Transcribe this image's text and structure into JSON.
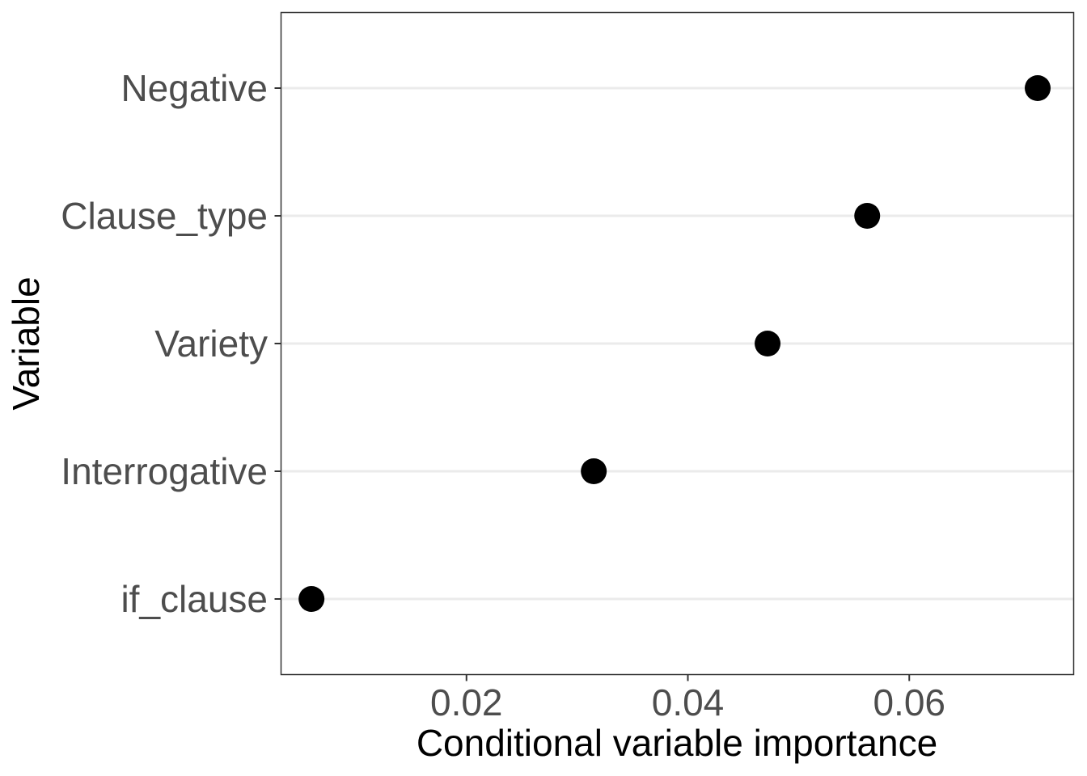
{
  "chart_data": {
    "type": "scatter",
    "title": "",
    "xlabel": "Conditional variable importance",
    "ylabel": "Variable",
    "categories": [
      "Negative",
      "Clause_type",
      "Variety",
      "Interrogative",
      "if_clause"
    ],
    "values": [
      0.0716,
      0.0562,
      0.0472,
      0.0315,
      0.006
    ],
    "x_ticks": [
      "0.02",
      "0.04",
      "0.06"
    ],
    "x_tick_values": [
      0.02,
      0.04,
      0.06
    ],
    "xlim": [
      0.00325,
      0.07485
    ],
    "grid": "horizontal major lines only",
    "point_color": "#000000",
    "grid_color": "#ebebeb",
    "panel_border_color": "#333333"
  }
}
